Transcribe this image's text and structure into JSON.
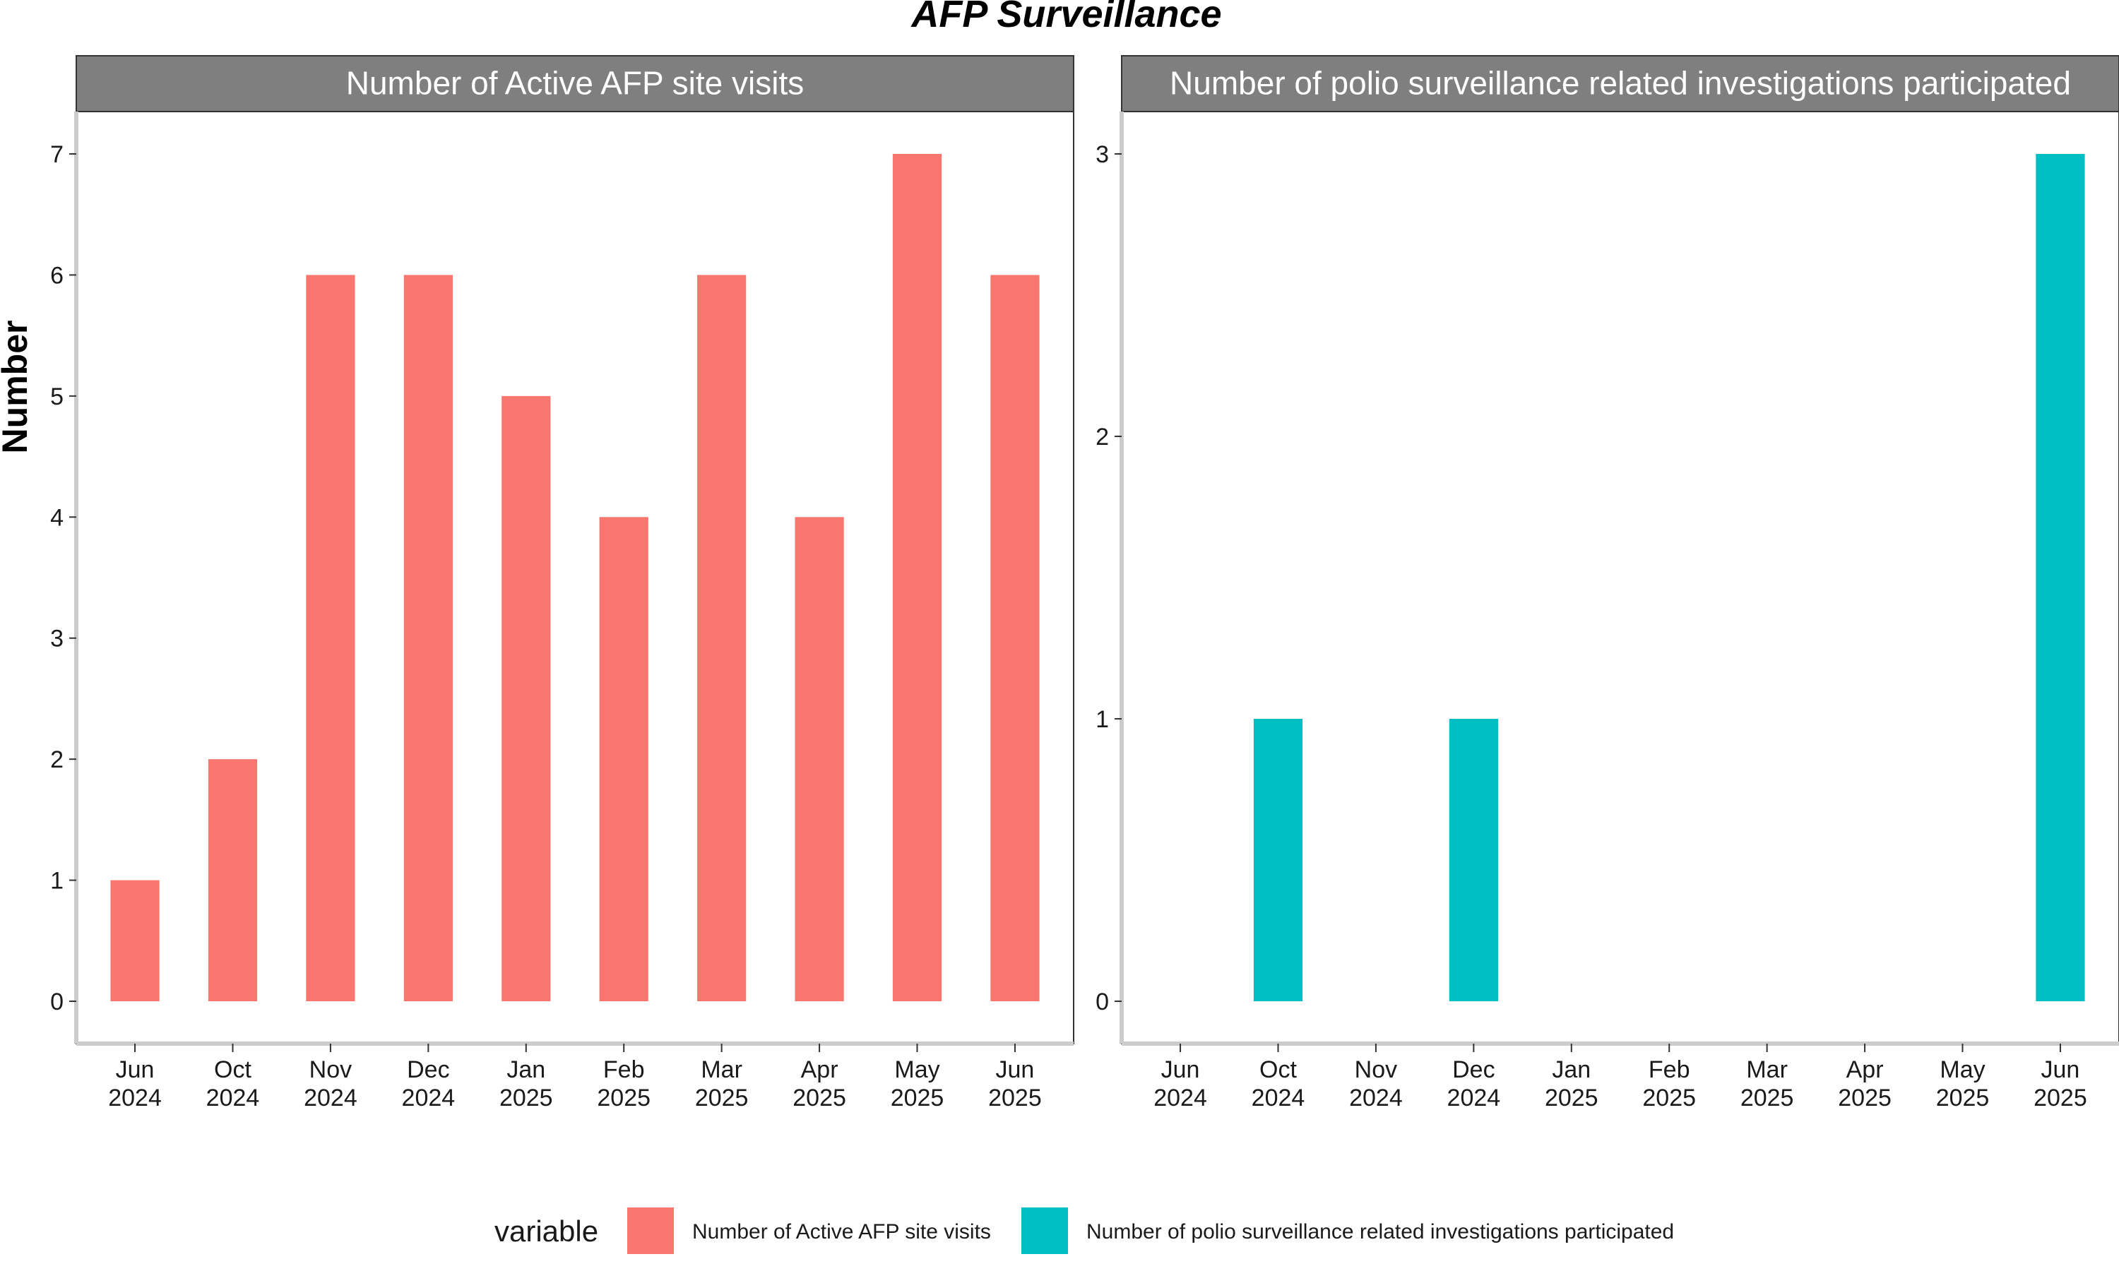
{
  "title": "AFP Surveillance",
  "ylabel": "Number",
  "legend_title": "variable",
  "legend_position": "bottom",
  "chart_data": [
    {
      "type": "bar",
      "title": "Number of Active AFP site visits",
      "categories": [
        [
          "Jun",
          "2024"
        ],
        [
          "Oct",
          "2024"
        ],
        [
          "Nov",
          "2024"
        ],
        [
          "Dec",
          "2024"
        ],
        [
          "Jan",
          "2025"
        ],
        [
          "Feb",
          "2025"
        ],
        [
          "Mar",
          "2025"
        ],
        [
          "Apr",
          "2025"
        ],
        [
          "May",
          "2025"
        ],
        [
          "Jun",
          "2025"
        ]
      ],
      "series": [
        {
          "name": "Number of Active AFP site visits",
          "values": [
            1,
            2,
            6,
            6,
            5,
            4,
            6,
            4,
            7,
            6
          ],
          "color": "#F8766D"
        }
      ],
      "yticks": [
        0,
        1,
        2,
        3,
        4,
        5,
        6,
        7
      ],
      "ylim": [
        -0.35,
        7.35
      ],
      "xlabel": "",
      "ylabel": "Number",
      "grid": false
    },
    {
      "type": "bar",
      "title": "Number of polio surveillance related investigations participated",
      "categories": [
        [
          "Jun",
          "2024"
        ],
        [
          "Oct",
          "2024"
        ],
        [
          "Nov",
          "2024"
        ],
        [
          "Dec",
          "2024"
        ],
        [
          "Jan",
          "2025"
        ],
        [
          "Feb",
          "2025"
        ],
        [
          "Mar",
          "2025"
        ],
        [
          "Apr",
          "2025"
        ],
        [
          "May",
          "2025"
        ],
        [
          "Jun",
          "2025"
        ]
      ],
      "series": [
        {
          "name": "Number of polio surveillance related investigations participated",
          "values": [
            0,
            1,
            0,
            1,
            0,
            0,
            0,
            0,
            0,
            3
          ],
          "color": "#00BFC4"
        }
      ],
      "yticks": [
        0,
        1,
        2,
        3
      ],
      "ylim": [
        -0.15,
        3.15
      ],
      "xlabel": "",
      "ylabel": "",
      "grid": false
    }
  ],
  "colors": {
    "strip_bg": "#7F7F7F",
    "panel_border": "#333333",
    "axis_line": "#CCCCCC"
  }
}
